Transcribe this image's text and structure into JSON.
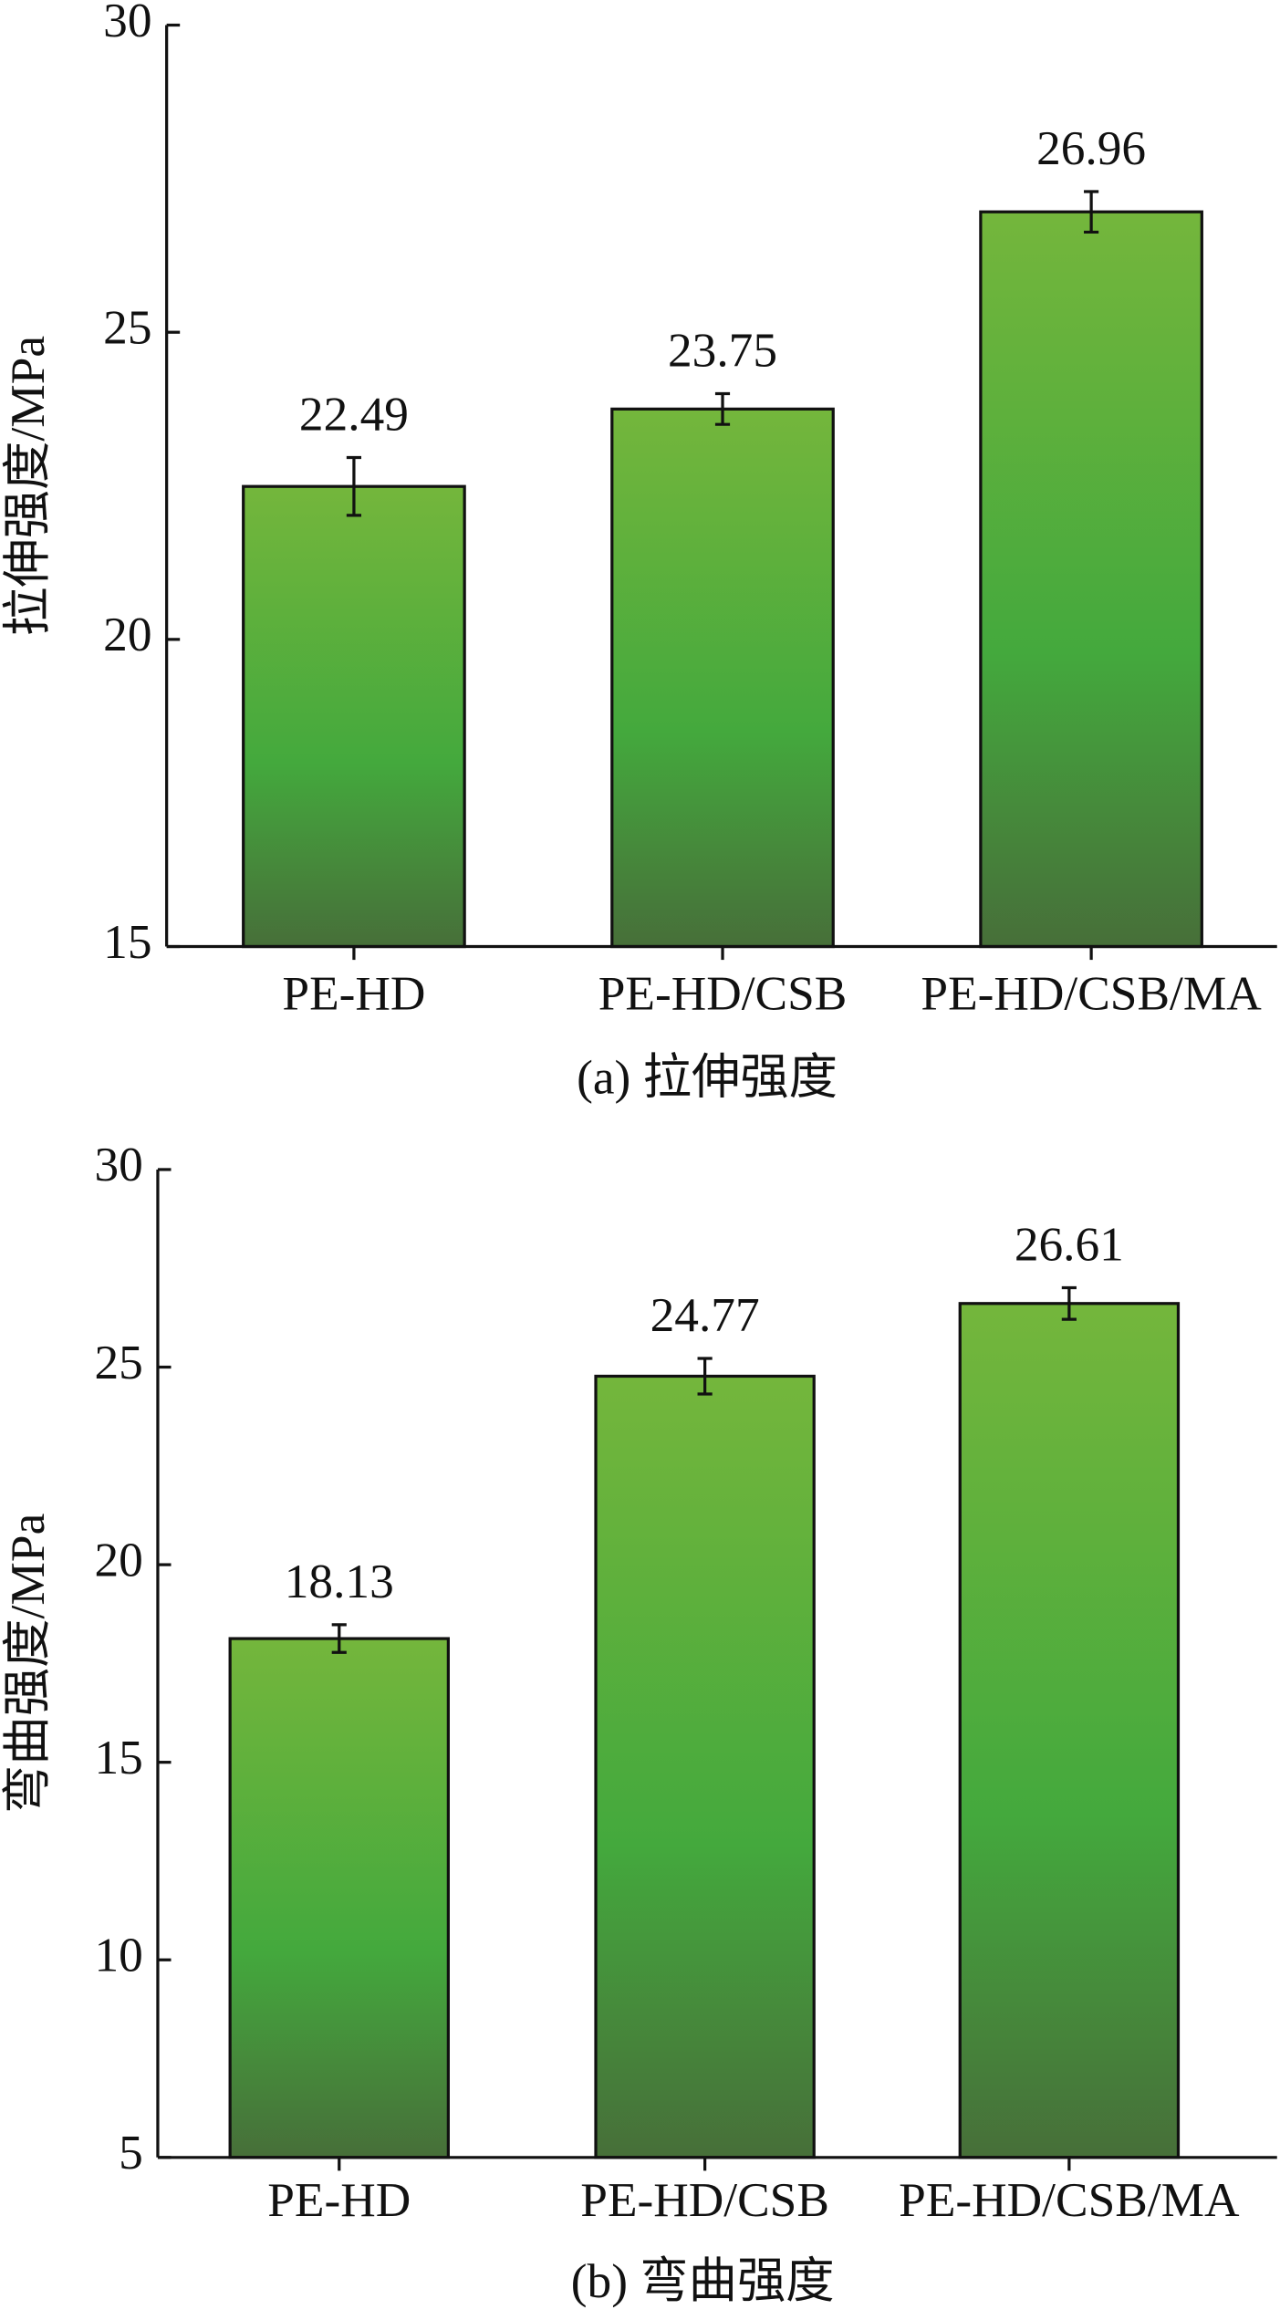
{
  "chart_data": [
    {
      "type": "bar",
      "title": "(a) 拉伸强度",
      "ylabel": "拉伸强度/MPa",
      "categories": [
        "PE-HD",
        "PE-HD/CSB",
        "PE-HD/CSB/MA"
      ],
      "values": [
        22.49,
        23.75,
        26.96
      ],
      "errors": [
        0.47,
        0.25,
        0.33
      ],
      "colors": [
        "#74b63c",
        "#44a93d",
        "#476f39"
      ],
      "ylim": [
        15,
        30
      ],
      "yticks": [
        15,
        20,
        25,
        30
      ]
    },
    {
      "type": "bar",
      "title": "(b) 弯曲强度",
      "ylabel": "弯曲强度/MPa",
      "categories": [
        "PE-HD",
        "PE-HD/CSB",
        "PE-HD/CSB/MA"
      ],
      "values": [
        18.13,
        24.77,
        26.61
      ],
      "errors": [
        0.35,
        0.45,
        0.4
      ],
      "colors": [
        "#74b63c",
        "#44a93d",
        "#476f39"
      ],
      "ylim": [
        5,
        30
      ],
      "yticks": [
        5,
        10,
        15,
        20,
        25,
        30
      ]
    }
  ]
}
